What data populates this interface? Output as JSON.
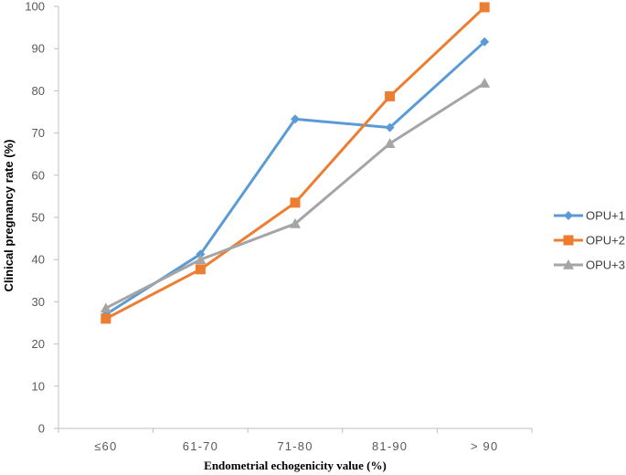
{
  "chart_data": {
    "type": "line",
    "title": "",
    "xlabel": "Endometrial  echogenicity value (%)",
    "ylabel": "Clinical pregnancy rate (%)",
    "categories": [
      "≤60",
      "61-70",
      "71-80",
      "81-90",
      "> 90"
    ],
    "ylim": [
      0,
      100
    ],
    "yticks": [
      0,
      10,
      20,
      30,
      40,
      50,
      60,
      70,
      80,
      90,
      100
    ],
    "grid": false,
    "legend_position": "right",
    "series": [
      {
        "name": "OPU+1",
        "color": "#5B9BD5",
        "marker": "diamond",
        "values": [
          27.0,
          41.3,
          73.3,
          71.3,
          91.6
        ]
      },
      {
        "name": "OPU+2",
        "color": "#ED7D31",
        "marker": "square",
        "values": [
          26.0,
          37.7,
          53.5,
          78.7,
          99.8
        ]
      },
      {
        "name": "OPU+3",
        "color": "#A5A5A5",
        "marker": "triangle",
        "values": [
          28.5,
          40.0,
          48.5,
          67.5,
          81.8
        ]
      }
    ]
  }
}
